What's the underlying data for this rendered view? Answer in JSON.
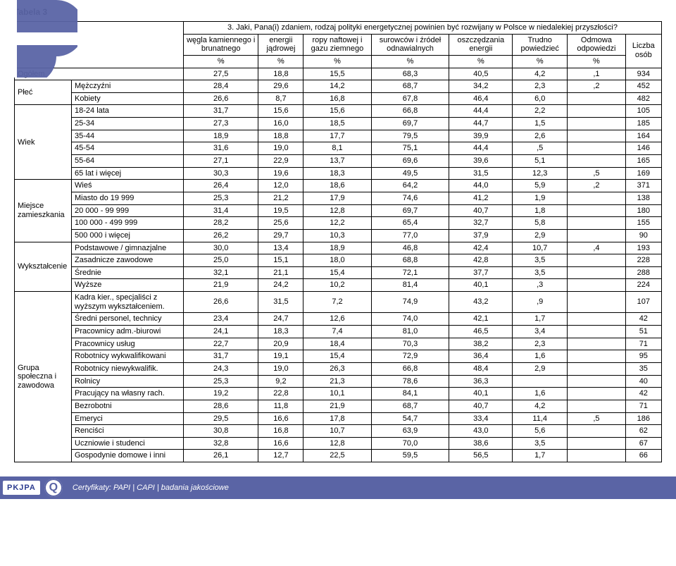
{
  "title": "Tabela 3",
  "question": "3. Jaki, Pana(i) zdaniem, rodzaj polityki energetycznej powinien być rozwijany w Polsce w niedalekiej przyszłości?",
  "columns": [
    "węgla kamiennego i brunatnego",
    "energii jądrowej",
    "ropy naftowej i gazu ziemnego",
    "surowców i źródeł odnawialnych",
    "oszczędzania energii",
    "Trudno powiedzieć",
    "Odmowa odpowiedzi",
    "Liczba osób"
  ],
  "pct_row_label": "%",
  "stub_groups": [
    {
      "label": "Ogółem",
      "rows": [
        {
          "label": "",
          "v": [
            "27,5",
            "18,8",
            "15,5",
            "68,3",
            "40,5",
            "4,2",
            ",1",
            "934"
          ]
        }
      ]
    },
    {
      "label": "Płeć",
      "rows": [
        {
          "label": "Mężczyźni",
          "v": [
            "28,4",
            "29,6",
            "14,2",
            "68,7",
            "34,2",
            "2,3",
            ",2",
            "452"
          ]
        },
        {
          "label": "Kobiety",
          "v": [
            "26,6",
            "8,7",
            "16,8",
            "67,8",
            "46,4",
            "6,0",
            "",
            "482"
          ]
        }
      ]
    },
    {
      "label": "Wiek",
      "rows": [
        {
          "label": "18-24 lata",
          "v": [
            "31,7",
            "15,6",
            "15,6",
            "66,8",
            "44,4",
            "2,2",
            "",
            "105"
          ]
        },
        {
          "label": "25-34",
          "v": [
            "27,3",
            "16,0",
            "18,5",
            "69,7",
            "44,7",
            "1,5",
            "",
            "185"
          ]
        },
        {
          "label": "35-44",
          "v": [
            "18,9",
            "18,8",
            "17,7",
            "79,5",
            "39,9",
            "2,6",
            "",
            "164"
          ]
        },
        {
          "label": "45-54",
          "v": [
            "31,6",
            "19,0",
            "8,1",
            "75,1",
            "44,4",
            ",5",
            "",
            "146"
          ]
        },
        {
          "label": "55-64",
          "v": [
            "27,1",
            "22,9",
            "13,7",
            "69,6",
            "39,6",
            "5,1",
            "",
            "165"
          ]
        },
        {
          "label": "65 lat i więcej",
          "v": [
            "30,3",
            "19,6",
            "18,3",
            "49,5",
            "31,5",
            "12,3",
            ",5",
            "169"
          ]
        }
      ]
    },
    {
      "label": "Miejsce zamieszkania",
      "rows": [
        {
          "label": "Wieś",
          "v": [
            "26,4",
            "12,0",
            "18,6",
            "64,2",
            "44,0",
            "5,9",
            ",2",
            "371"
          ]
        },
        {
          "label": "Miasto do 19 999",
          "v": [
            "25,3",
            "21,2",
            "17,9",
            "74,6",
            "41,2",
            "1,9",
            "",
            "138"
          ]
        },
        {
          "label": "20 000 - 99 999",
          "v": [
            "31,4",
            "19,5",
            "12,8",
            "69,7",
            "40,7",
            "1,8",
            "",
            "180"
          ]
        },
        {
          "label": "100 000 - 499 999",
          "v": [
            "28,2",
            "25,6",
            "12,2",
            "65,4",
            "32,7",
            "5,8",
            "",
            "155"
          ]
        },
        {
          "label": "500 000 i więcej",
          "v": [
            "26,2",
            "29,7",
            "10,3",
            "77,0",
            "37,9",
            "2,9",
            "",
            "90"
          ]
        }
      ]
    },
    {
      "label": "Wykształcenie",
      "rows": [
        {
          "label": "Podstawowe / gimnazjalne",
          "v": [
            "30,0",
            "13,4",
            "18,9",
            "46,8",
            "42,4",
            "10,7",
            ",4",
            "193"
          ]
        },
        {
          "label": "Zasadnicze zawodowe",
          "v": [
            "25,0",
            "15,1",
            "18,0",
            "68,8",
            "42,8",
            "3,5",
            "",
            "228"
          ]
        },
        {
          "label": "Średnie",
          "v": [
            "32,1",
            "21,1",
            "15,4",
            "72,1",
            "37,7",
            "3,5",
            "",
            "288"
          ]
        },
        {
          "label": "Wyższe",
          "v": [
            "21,9",
            "24,2",
            "10,2",
            "81,4",
            "40,1",
            ",3",
            "",
            "224"
          ]
        }
      ]
    },
    {
      "label": "Grupa społeczna i zawodowa",
      "rows": [
        {
          "label": "Kadra kier., specjaliści z wyższym wykształceniem.",
          "v": [
            "26,6",
            "31,5",
            "7,2",
            "74,9",
            "43,2",
            ",9",
            "",
            "107"
          ]
        },
        {
          "label": "Średni personel, technicy",
          "v": [
            "23,4",
            "24,7",
            "12,6",
            "74,0",
            "42,1",
            "1,7",
            "",
            "42"
          ]
        },
        {
          "label": "Pracownicy adm.-biurowi",
          "v": [
            "24,1",
            "18,3",
            "7,4",
            "81,0",
            "46,5",
            "3,4",
            "",
            "51"
          ]
        },
        {
          "label": "Pracownicy usług",
          "v": [
            "22,7",
            "20,9",
            "18,4",
            "70,3",
            "38,2",
            "2,3",
            "",
            "71"
          ]
        },
        {
          "label": "Robotnicy wykwalifikowani",
          "v": [
            "31,7",
            "19,1",
            "15,4",
            "72,9",
            "36,4",
            "1,6",
            "",
            "95"
          ]
        },
        {
          "label": "Robotnicy niewykwalifik.",
          "v": [
            "24,3",
            "19,0",
            "26,3",
            "66,8",
            "48,4",
            "2,9",
            "",
            "35"
          ]
        },
        {
          "label": "Rolnicy",
          "v": [
            "25,3",
            "9,2",
            "21,3",
            "78,6",
            "36,3",
            "",
            "",
            "40"
          ]
        },
        {
          "label": "Pracujący na własny rach.",
          "v": [
            "19,2",
            "22,8",
            "10,1",
            "84,1",
            "40,1",
            "1,6",
            "",
            "42"
          ]
        },
        {
          "label": "Bezrobotni",
          "v": [
            "28,6",
            "11,8",
            "21,9",
            "68,7",
            "40,7",
            "4,2",
            "",
            "71"
          ]
        },
        {
          "label": "Emeryci",
          "v": [
            "29,5",
            "16,6",
            "17,8",
            "54,7",
            "33,4",
            "11,4",
            ",5",
            "186"
          ]
        },
        {
          "label": "Renciści",
          "v": [
            "30,8",
            "16,8",
            "10,7",
            "63,9",
            "43,0",
            "5,6",
            "",
            "62"
          ]
        },
        {
          "label": "Uczniowie i studenci",
          "v": [
            "32,8",
            "16,6",
            "12,8",
            "70,0",
            "38,6",
            "3,5",
            "",
            "67"
          ]
        },
        {
          "label": "Gospodynie domowe i inni",
          "v": [
            "26,1",
            "12,7",
            "22,5",
            "59,5",
            "56,5",
            "1,7",
            "",
            "66"
          ]
        }
      ]
    }
  ],
  "footer": {
    "badge": "PKJPA",
    "text": "Certyfikaty: PAPI | CAPI | badania jakościowe"
  },
  "colors": {
    "logo_mark": "#5a64a5",
    "footer_bg": "#5a64a5",
    "footer_text": "#ffffff"
  }
}
